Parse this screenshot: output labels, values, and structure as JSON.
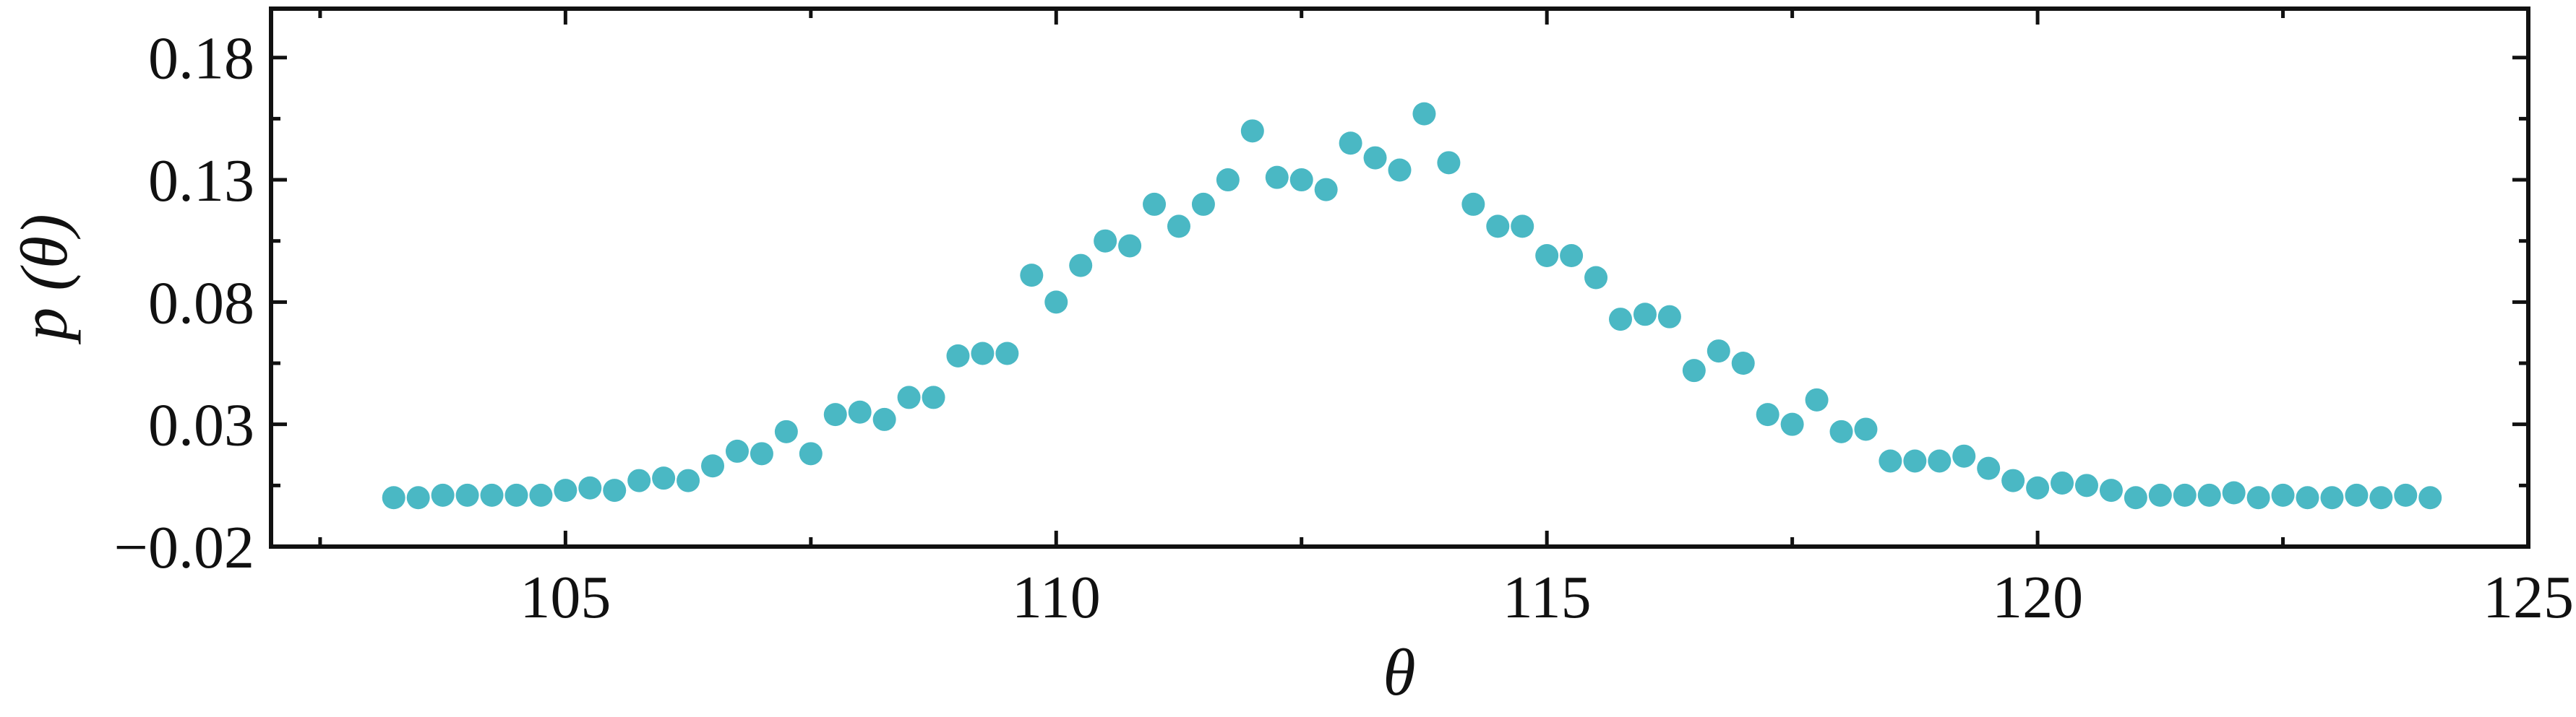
{
  "chart_data": {
    "type": "scatter",
    "xlabel": "θ",
    "ylabel": "p (θ)",
    "xlim": [
      102,
      125
    ],
    "ylim": [
      -0.02,
      0.2
    ],
    "x_major_ticks": [
      105,
      110,
      115,
      120,
      125
    ],
    "x_tick_labels": [
      "105",
      "110",
      "115",
      "120",
      "125"
    ],
    "x_minor_ticks": [
      102.5,
      107.5,
      112.5,
      117.5,
      122.5
    ],
    "y_major_ticks": [
      -0.02,
      0.03,
      0.08,
      0.13,
      0.18
    ],
    "y_tick_labels": [
      "−0.02",
      "0.03",
      "0.08",
      "0.13",
      "0.18"
    ],
    "y_minor_ticks": [
      0.005,
      0.055,
      0.105,
      0.155
    ],
    "grid": false,
    "marker_color": "#4ab8c4",
    "frame_color": "#111111",
    "series": [
      {
        "points": [
          [
            103.25,
            0.0
          ],
          [
            103.5,
            0.0
          ],
          [
            103.75,
            0.001
          ],
          [
            104.0,
            0.001
          ],
          [
            104.25,
            0.001
          ],
          [
            104.5,
            0.001
          ],
          [
            104.75,
            0.001
          ],
          [
            105.0,
            0.003
          ],
          [
            105.25,
            0.004
          ],
          [
            105.5,
            0.003
          ],
          [
            105.75,
            0.007
          ],
          [
            106.0,
            0.008
          ],
          [
            106.25,
            0.007
          ],
          [
            106.5,
            0.013
          ],
          [
            106.75,
            0.019
          ],
          [
            107.0,
            0.018
          ],
          [
            107.25,
            0.027
          ],
          [
            107.5,
            0.018
          ],
          [
            107.75,
            0.034
          ],
          [
            108.0,
            0.035
          ],
          [
            108.25,
            0.032
          ],
          [
            108.5,
            0.041
          ],
          [
            108.75,
            0.041
          ],
          [
            109.0,
            0.058
          ],
          [
            109.25,
            0.059
          ],
          [
            109.5,
            0.059
          ],
          [
            109.75,
            0.091
          ],
          [
            110.0,
            0.08
          ],
          [
            110.25,
            0.095
          ],
          [
            110.5,
            0.105
          ],
          [
            110.75,
            0.103
          ],
          [
            111.0,
            0.12
          ],
          [
            111.25,
            0.111
          ],
          [
            111.5,
            0.12
          ],
          [
            111.75,
            0.13
          ],
          [
            112.0,
            0.15
          ],
          [
            112.25,
            0.131
          ],
          [
            112.5,
            0.13
          ],
          [
            112.75,
            0.126
          ],
          [
            113.0,
            0.145
          ],
          [
            113.25,
            0.139
          ],
          [
            113.5,
            0.134
          ],
          [
            113.75,
            0.157
          ],
          [
            114.0,
            0.137
          ],
          [
            114.25,
            0.12
          ],
          [
            114.5,
            0.111
          ],
          [
            114.75,
            0.111
          ],
          [
            115.0,
            0.099
          ],
          [
            115.25,
            0.099
          ],
          [
            115.5,
            0.09
          ],
          [
            115.75,
            0.073
          ],
          [
            116.0,
            0.075
          ],
          [
            116.25,
            0.074
          ],
          [
            116.5,
            0.052
          ],
          [
            116.75,
            0.06
          ],
          [
            117.0,
            0.055
          ],
          [
            117.25,
            0.034
          ],
          [
            117.5,
            0.03
          ],
          [
            117.75,
            0.04
          ],
          [
            118.0,
            0.027
          ],
          [
            118.25,
            0.028
          ],
          [
            118.5,
            0.015
          ],
          [
            118.75,
            0.015
          ],
          [
            119.0,
            0.015
          ],
          [
            119.25,
            0.017
          ],
          [
            119.5,
            0.012
          ],
          [
            119.75,
            0.007
          ],
          [
            120.0,
            0.004
          ],
          [
            120.25,
            0.006
          ],
          [
            120.5,
            0.005
          ],
          [
            120.75,
            0.003
          ],
          [
            121.0,
            0.0
          ],
          [
            121.25,
            0.001
          ],
          [
            121.5,
            0.001
          ],
          [
            121.75,
            0.001
          ],
          [
            122.0,
            0.002
          ],
          [
            122.25,
            0.0
          ],
          [
            122.5,
            0.001
          ],
          [
            122.75,
            0.0
          ],
          [
            123.0,
            0.0
          ],
          [
            123.25,
            0.001
          ],
          [
            123.5,
            0.0
          ],
          [
            123.75,
            0.001
          ],
          [
            124.0,
            0.0
          ]
        ]
      }
    ]
  }
}
